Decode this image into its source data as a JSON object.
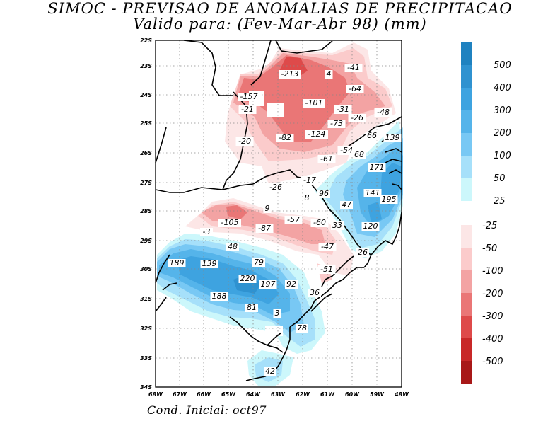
{
  "title_line1": "SIMOC - PREVISAO DE ANOMALIAS DE PRECIPITACAO",
  "title_line2": "Valido para: (Fev-Mar-Abr 98) (mm)",
  "footer": "Cond. Inicial: oct97",
  "map": {
    "lon_ticks": [
      "68W",
      "67W",
      "66W",
      "65W",
      "64W",
      "63W",
      "62W",
      "61W",
      "60W",
      "59W",
      "48W"
    ],
    "lat_ticks": [
      "22S",
      "23S",
      "24S",
      "25S",
      "26S",
      "27S",
      "28S",
      "29S",
      "30S",
      "31S",
      "32S",
      "33S",
      "34S"
    ],
    "contour_labels": [
      "-213",
      "4",
      "-41",
      "-64",
      "-157",
      "-101",
      "-31",
      "-48",
      "-21",
      "-26",
      "-73",
      "66",
      "139",
      "-82",
      "-124",
      "-20",
      "-54",
      "68",
      "-61",
      "171",
      "-17",
      "-26",
      "96",
      "141",
      "195",
      "8",
      "9",
      "47",
      "-105",
      "-57",
      "-60",
      "33",
      "-3",
      "-87",
      "120",
      "48",
      "-47",
      "26",
      "189",
      "139",
      "79",
      "-51",
      "220",
      "197",
      "92",
      "36",
      "188",
      "81",
      "3",
      "78",
      "42"
    ]
  },
  "colorbar": {
    "positive_labels": [
      "500",
      "400",
      "300",
      "200",
      "100",
      "50",
      "25"
    ],
    "negative_labels": [
      "-25",
      "-50",
      "-100",
      "-200",
      "-300",
      "-400",
      "-500"
    ],
    "positive_colors": [
      "#1f82c0",
      "#2f92d0",
      "#3ea3e0",
      "#55b4ea",
      "#78c8f4",
      "#a6e0fa",
      "#ccf7fb"
    ],
    "negative_colors": [
      "#fce6e6",
      "#fbcbcb",
      "#f3a3a3",
      "#ea7676",
      "#de4a4a",
      "#c82828",
      "#a81818"
    ]
  }
}
